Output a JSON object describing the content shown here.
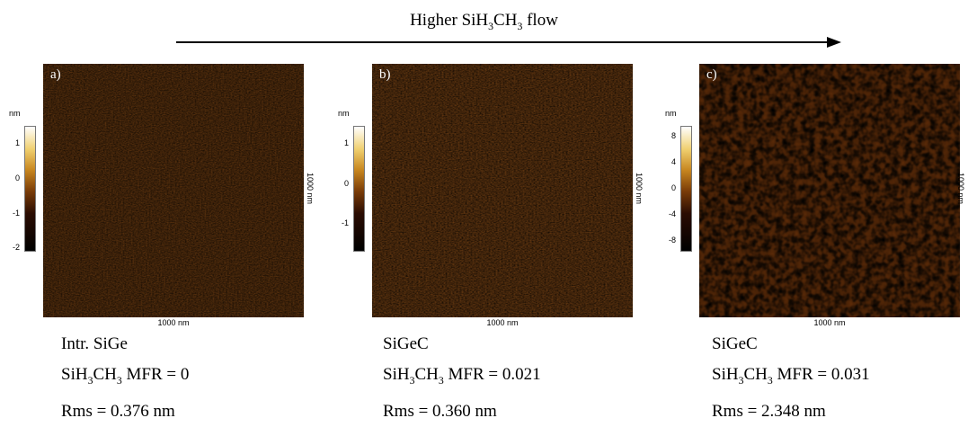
{
  "header": {
    "title_pre": "Higher SiH",
    "title_mid": "CH",
    "title_sub": "3",
    "title_post": "flow"
  },
  "panels": [
    {
      "tag": "a)",
      "unit": "nm",
      "ticks": [
        "1",
        "0",
        "-1",
        "-2"
      ],
      "scale": "1000 nm",
      "material": "Intr. SiGe",
      "mfr": "0",
      "rms": "Rms = 0.376 nm"
    },
    {
      "tag": "b)",
      "unit": "nm",
      "ticks": [
        "1",
        "0",
        "-1"
      ],
      "scale": "1000 nm",
      "material": "SiGeC",
      "mfr": "0.021",
      "rms": "Rms = 0.360 nm"
    },
    {
      "tag": "c)",
      "unit": "nm",
      "ticks": [
        "8",
        "4",
        "0",
        "-4",
        "-8"
      ],
      "scale": "1000 nm",
      "material": "SiGeC",
      "mfr": "0.031",
      "rms": "Rms = 2.348 nm"
    }
  ],
  "labels": {
    "mfr_pre": "SiH",
    "mfr_mid": "CH",
    "mfr_sub": "3",
    "mfr_post": "MFR = "
  }
}
